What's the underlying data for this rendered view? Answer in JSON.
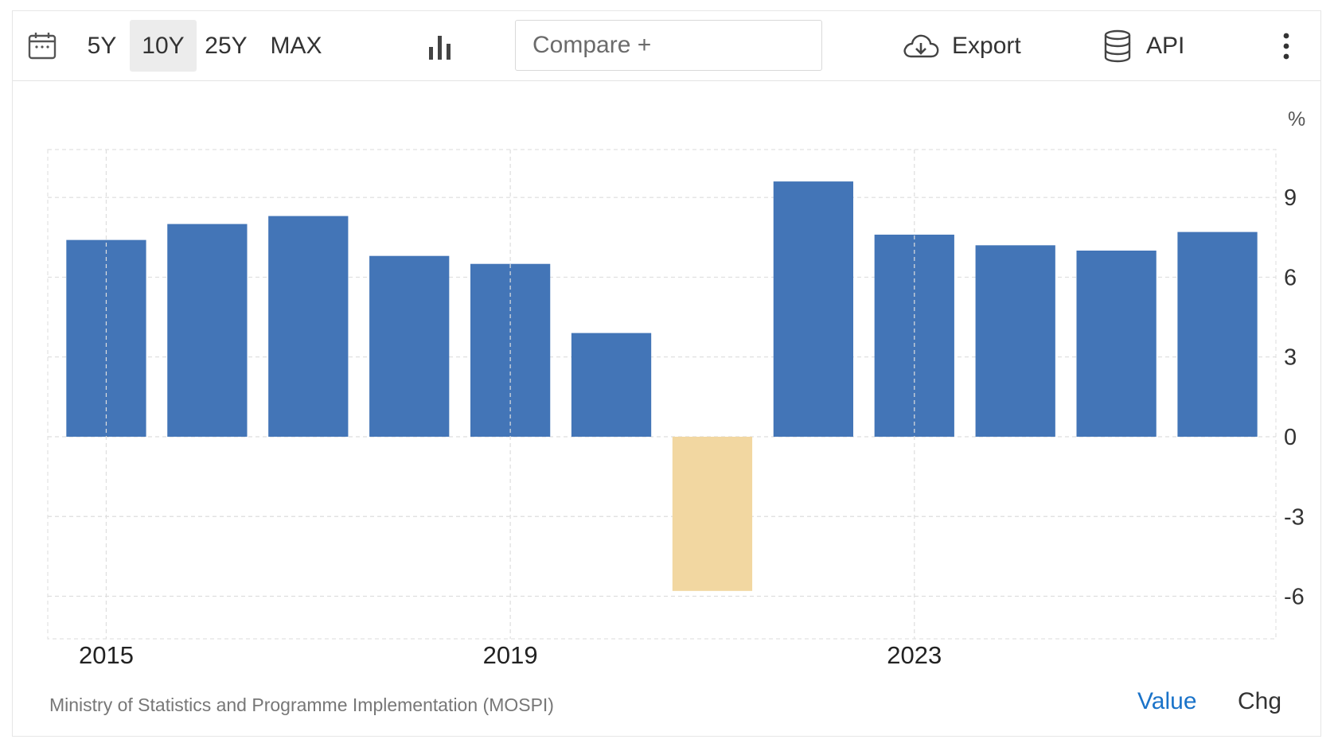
{
  "toolbar": {
    "ranges": [
      "5Y",
      "10Y",
      "25Y",
      "MAX"
    ],
    "active_range": "10Y",
    "compare_label": "Compare +",
    "export_label": "Export",
    "api_label": "API",
    "icons": {
      "calendar": "calendar-icon",
      "chart_type": "bar-chart-icon",
      "export": "cloud-download-icon",
      "api": "database-icon",
      "more": "vertical-dots-icon"
    }
  },
  "footer": {
    "source": "Ministry of Statistics and Programme Implementation (MOSPI)",
    "value_label": "Value",
    "chg_label": "Chg"
  },
  "colors": {
    "positive_bar": "#4375b7",
    "negative_bar": "#f2d7a1",
    "link": "#1a73c9",
    "grid": "#dedede"
  },
  "chart_data": {
    "type": "bar",
    "categories": [
      "2015",
      "2016",
      "2017",
      "2018",
      "2019",
      "2020",
      "2021",
      "2022",
      "2023",
      "2024",
      "2025",
      "2026"
    ],
    "values": [
      7.4,
      8.0,
      8.3,
      6.8,
      6.5,
      3.9,
      -5.8,
      9.6,
      7.6,
      7.2,
      7.0,
      7.7
    ],
    "xtick_labels": [
      "2015",
      "2019",
      "2023"
    ],
    "ylabel": "%",
    "yticks": [
      -6,
      -3,
      0,
      3,
      6,
      9
    ],
    "ylim": [
      -7.6,
      10.8
    ],
    "grid": true,
    "y_axis_side": "right"
  }
}
